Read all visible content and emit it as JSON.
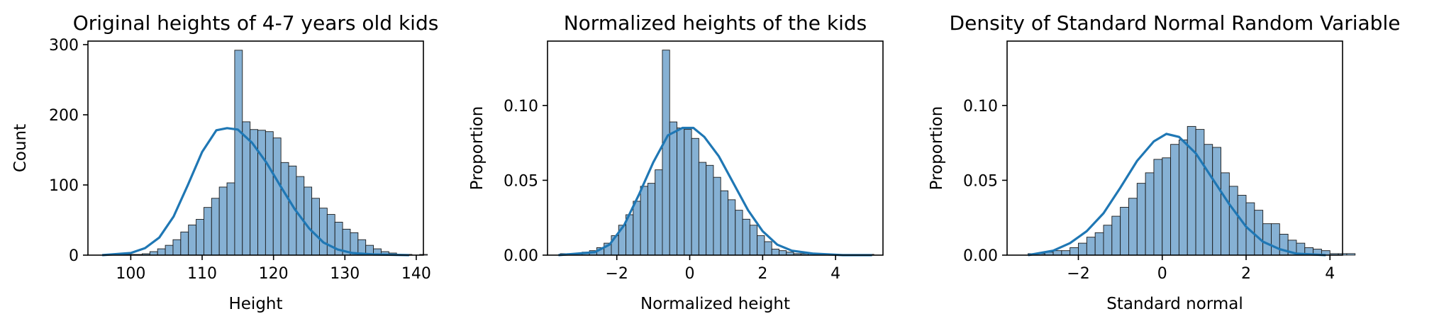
{
  "chart_data": [
    {
      "type": "histogram",
      "title": "Original heights of 4-7 years old kids",
      "xlabel": "Height",
      "ylabel": "Count",
      "xlim": [
        94,
        141
      ],
      "ylim": [
        0,
        305
      ],
      "xticks": [
        100,
        110,
        120,
        130,
        140
      ],
      "yticks": [
        0,
        100,
        200,
        300
      ],
      "bins": {
        "start": 96.2,
        "width": 1.08,
        "counts": [
          1,
          1,
          1,
          1,
          1,
          2,
          5,
          9,
          14,
          22,
          33,
          43,
          51,
          68,
          81,
          97,
          103,
          292,
          190,
          179,
          178,
          176,
          167,
          132,
          127,
          112,
          97,
          81,
          67,
          58,
          47,
          37,
          32,
          22,
          14,
          9,
          5,
          3,
          1,
          1,
          0,
          1
        ]
      },
      "kde": {
        "x": [
          96,
          100,
          102,
          104,
          106,
          108,
          110,
          112,
          113.5,
          115,
          117,
          119,
          121,
          123,
          125,
          127,
          129,
          131,
          134,
          139
        ],
        "y": [
          0,
          3,
          10,
          25,
          55,
          100,
          147,
          178,
          181,
          179,
          160,
          132,
          98,
          65,
          38,
          18,
          8,
          3,
          1,
          0
        ]
      }
    },
    {
      "type": "histogram",
      "title": "Normalized heights of the kids",
      "xlabel": "Normalized height",
      "ylabel": "Proportion",
      "xlim": [
        -3.9,
        5.3
      ],
      "ylim": [
        0,
        0.143
      ],
      "xticks": [
        -2,
        0,
        2,
        4
      ],
      "yticks": [
        0.0,
        0.05,
        0.1
      ],
      "bins": {
        "start": -3.55,
        "width": 0.2,
        "counts": [
          0.001,
          0.001,
          0.001,
          0.002,
          0.003,
          0.005,
          0.008,
          0.013,
          0.02,
          0.027,
          0.036,
          0.046,
          0.048,
          0.057,
          0.137,
          0.089,
          0.085,
          0.084,
          0.078,
          0.062,
          0.06,
          0.052,
          0.043,
          0.037,
          0.03,
          0.024,
          0.02,
          0.013,
          0.009,
          0.004,
          0.003,
          0.002,
          0.001,
          0.001,
          0.001,
          0.0005,
          0.0005,
          0.0005,
          0.0005,
          0.0005,
          0.0005,
          0.0005,
          0.0005
        ]
      },
      "kde": {
        "x": [
          -3.6,
          -2.6,
          -2.2,
          -1.8,
          -1.4,
          -1.0,
          -0.6,
          -0.2,
          0.1,
          0.4,
          0.8,
          1.2,
          1.6,
          2.0,
          2.4,
          2.8,
          3.4,
          4.2,
          5.0
        ],
        "y": [
          0,
          0.002,
          0.007,
          0.02,
          0.04,
          0.062,
          0.08,
          0.085,
          0.085,
          0.079,
          0.066,
          0.048,
          0.03,
          0.016,
          0.007,
          0.003,
          0.001,
          0,
          0
        ]
      }
    },
    {
      "type": "histogram",
      "title": "Density of Standard Normal Random Variable",
      "xlabel": "Standard normal",
      "ylabel": "Proportion",
      "xlim": [
        -3.7,
        4.3
      ],
      "ylim": [
        0,
        0.143
      ],
      "xticks": [
        -2,
        0,
        2,
        4
      ],
      "yticks": [
        0.0,
        0.05,
        0.1
      ],
      "bins": {
        "start": -3.2,
        "width": 0.2,
        "counts": [
          0.001,
          0.001,
          0.002,
          0.003,
          0.003,
          0.005,
          0.008,
          0.012,
          0.015,
          0.02,
          0.026,
          0.032,
          0.038,
          0.048,
          0.055,
          0.064,
          0.065,
          0.074,
          0.077,
          0.086,
          0.084,
          0.074,
          0.072,
          0.055,
          0.046,
          0.04,
          0.035,
          0.03,
          0.021,
          0.021,
          0.014,
          0.01,
          0.008,
          0.005,
          0.004,
          0.003,
          0.001,
          0.001,
          0.001
        ]
      },
      "kde": {
        "x": [
          -3.2,
          -2.6,
          -2.2,
          -1.8,
          -1.4,
          -1.0,
          -0.6,
          -0.2,
          0.1,
          0.4,
          0.8,
          1.2,
          1.6,
          2.0,
          2.4,
          2.8,
          3.2,
          3.9
        ],
        "y": [
          0,
          0.003,
          0.008,
          0.016,
          0.028,
          0.045,
          0.063,
          0.076,
          0.081,
          0.079,
          0.068,
          0.051,
          0.034,
          0.019,
          0.009,
          0.004,
          0.001,
          0
        ]
      }
    }
  ]
}
